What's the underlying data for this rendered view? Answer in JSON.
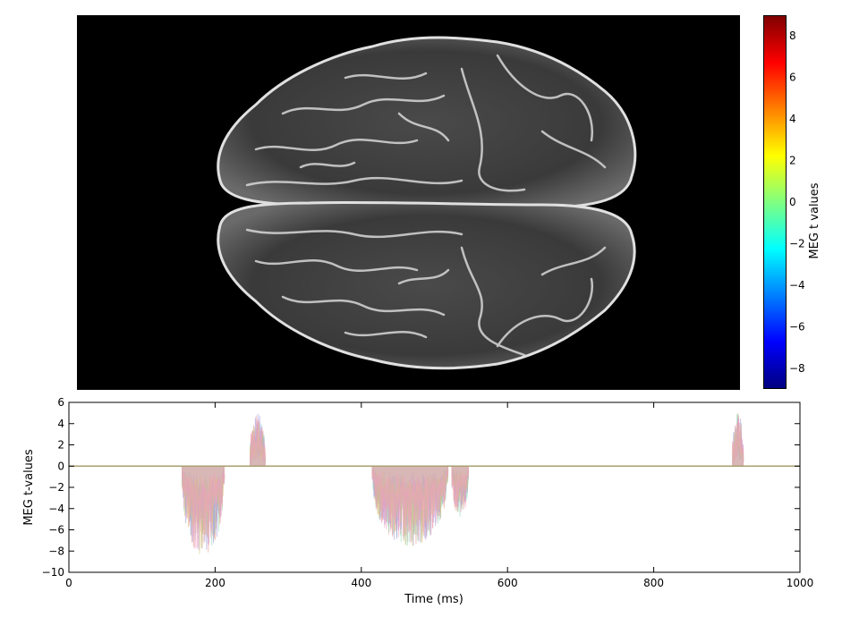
{
  "colorbar": {
    "label": "MEG t values",
    "min": -9,
    "max": 9,
    "ticks": [
      8,
      6,
      4,
      2,
      0,
      -2,
      -4,
      -6,
      -8
    ],
    "tick_labels": [
      "8",
      "6",
      "4",
      "2",
      "0",
      "−2",
      "−4",
      "−6",
      "−8"
    ],
    "colors": [
      "#000080",
      "#0000ff",
      "#0080ff",
      "#00ffff",
      "#80ff80",
      "#ffff00",
      "#ff8000",
      "#ff0000",
      "#800000"
    ]
  },
  "chart_data": {
    "type": "line",
    "xlabel": "Time (ms)",
    "ylabel": "MEG t-values",
    "xlim": [
      0,
      1000
    ],
    "ylim": [
      -10,
      6
    ],
    "xticks": [
      0,
      200,
      400,
      600,
      800,
      1000
    ],
    "yticks": [
      6,
      4,
      2,
      0,
      -2,
      -4,
      -6,
      -8,
      -10
    ],
    "ytick_labels": [
      "6",
      "4",
      "2",
      "0",
      "−2",
      "−4",
      "−6",
      "−8",
      "−10"
    ],
    "baseline": 0,
    "grid": false,
    "series_colors": [
      "#e69a8a",
      "#8fd6b5",
      "#a89be0",
      "#d9c27a",
      "#f0a0c0"
    ],
    "bursts": [
      {
        "x_start": 155,
        "x_end": 212,
        "min": -8.6,
        "sign": "negative"
      },
      {
        "x_start": 248,
        "x_end": 268,
        "max": 5.0,
        "sign": "positive"
      },
      {
        "x_start": 415,
        "x_end": 518,
        "min": -7.6,
        "sign": "negative"
      },
      {
        "x_start": 524,
        "x_end": 546,
        "min": -5.0,
        "sign": "negative"
      },
      {
        "x_start": 908,
        "x_end": 922,
        "max": 5.0,
        "sign": "positive"
      }
    ]
  }
}
